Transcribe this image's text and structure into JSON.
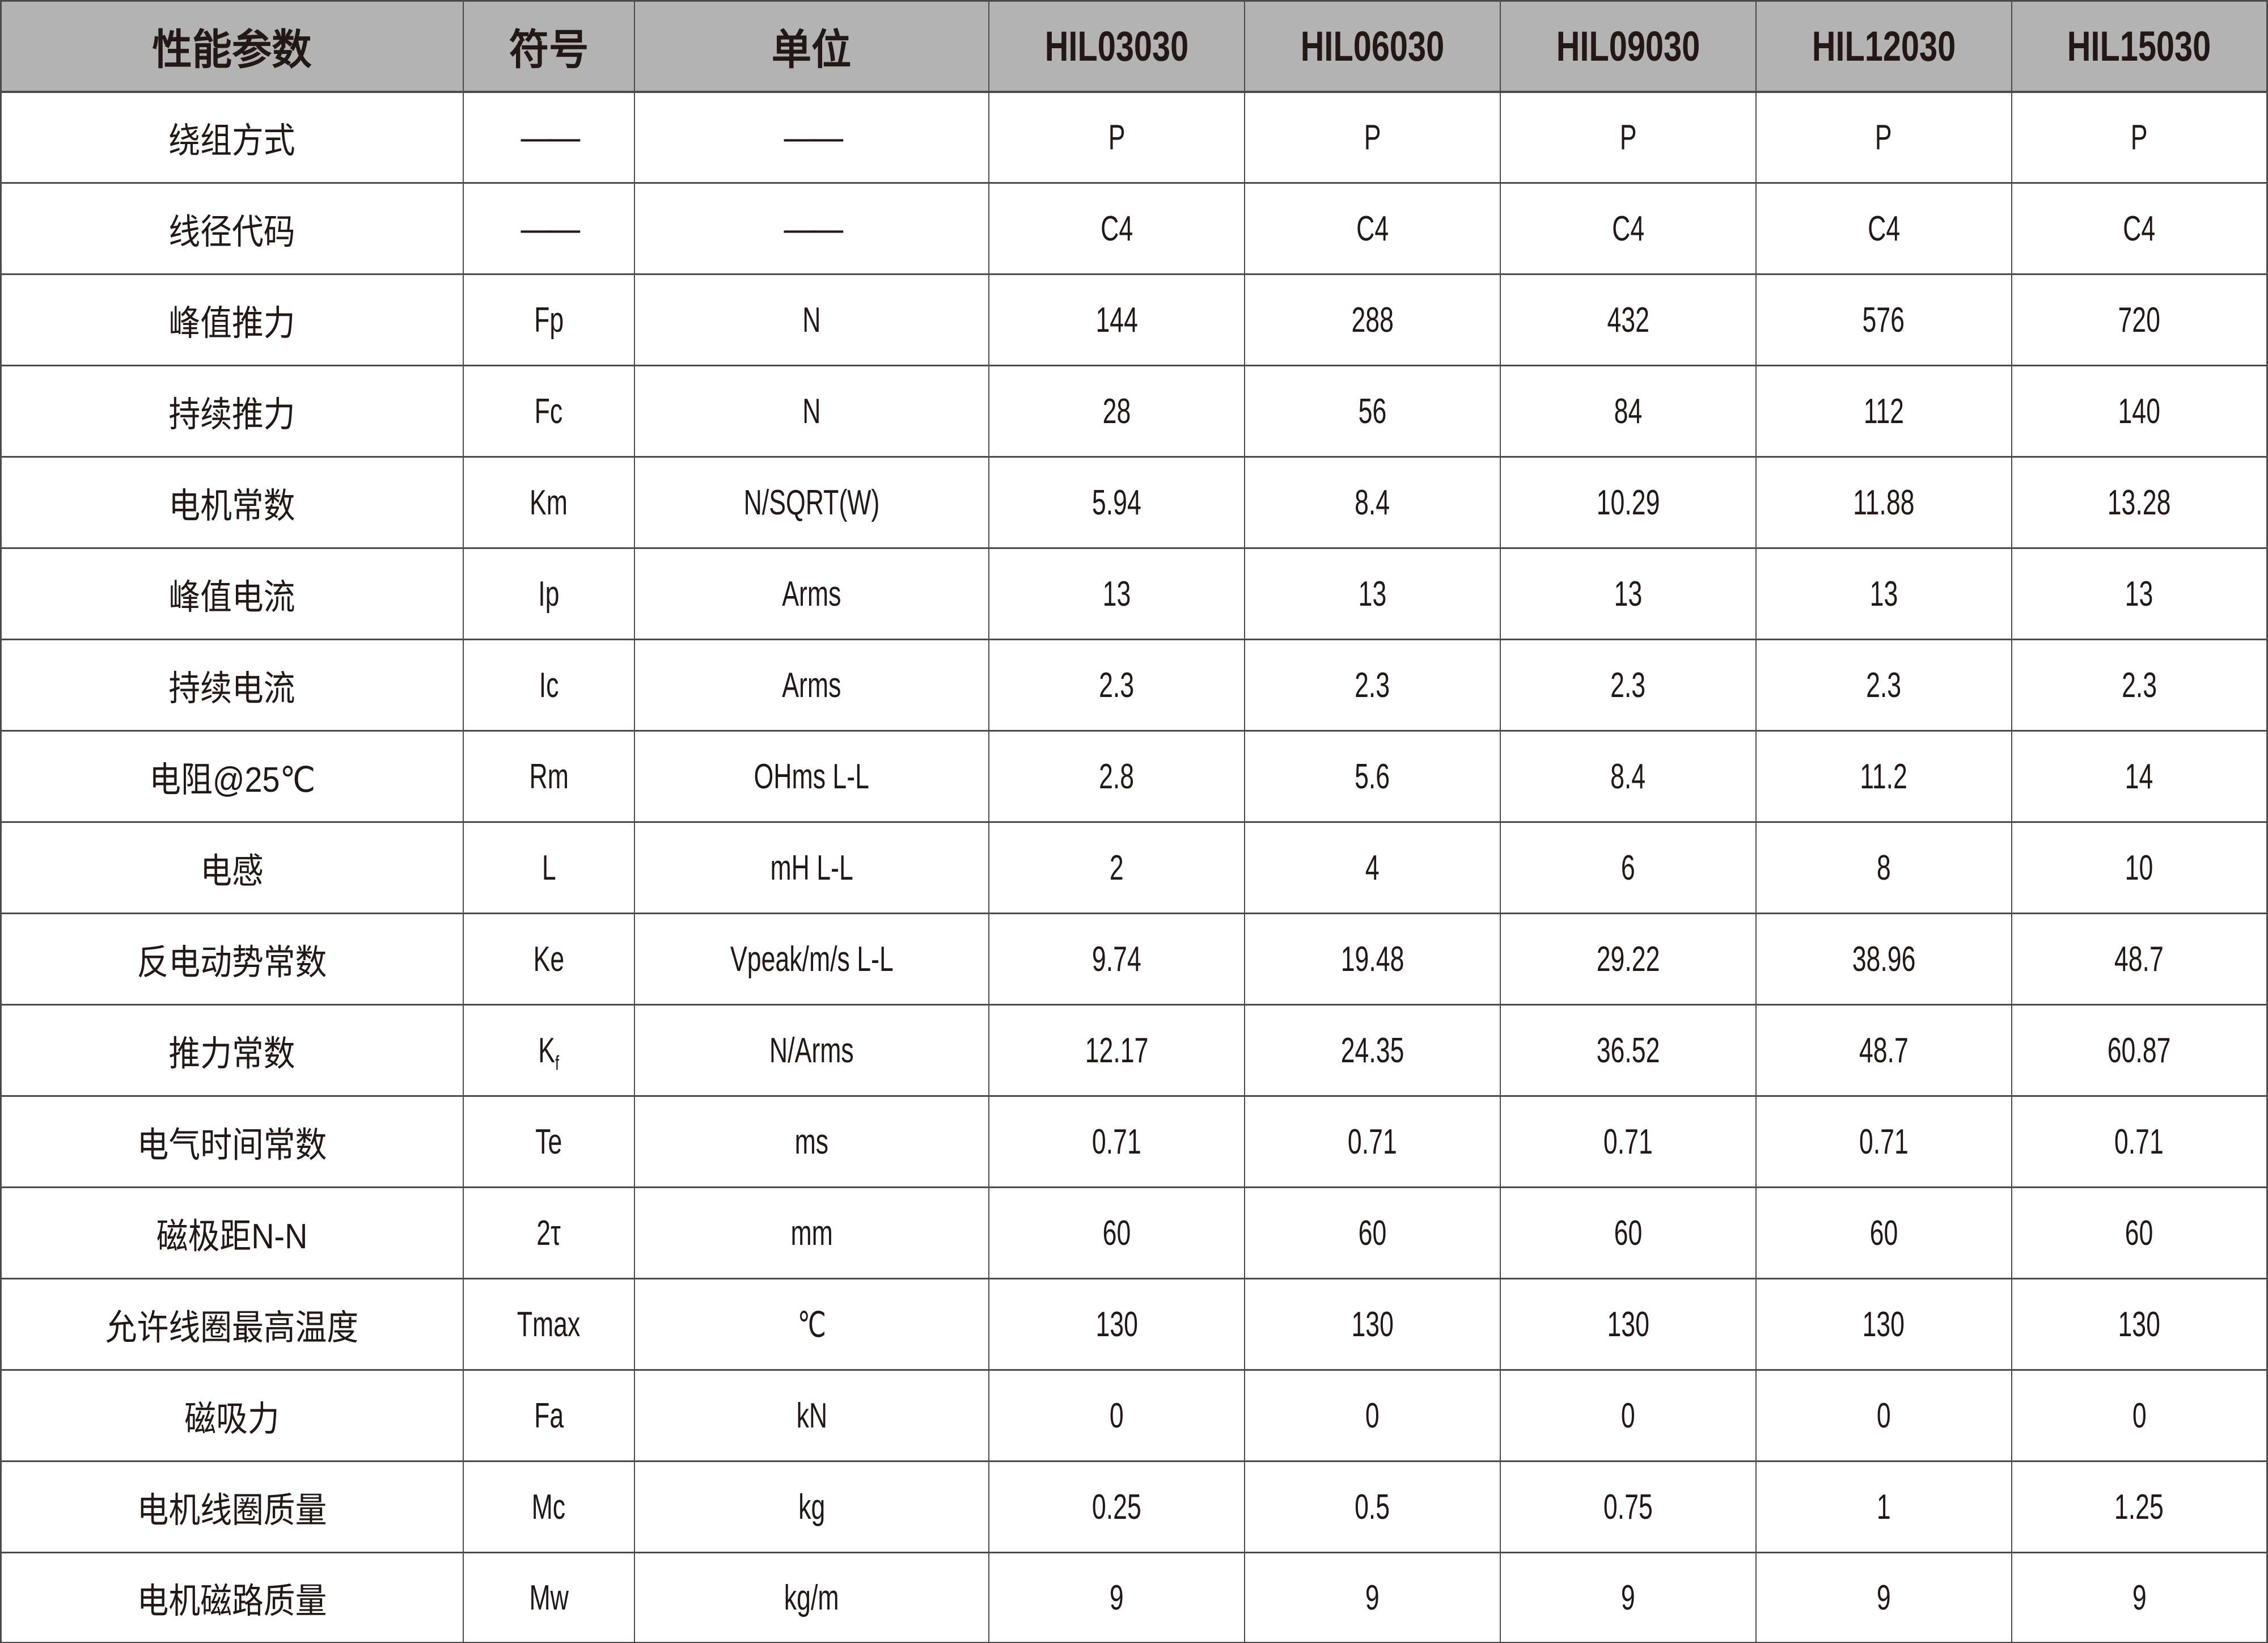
{
  "colors": {
    "header_bg": "#b3b3b3",
    "cell_bg": "#ffffff",
    "border": "#4e4a49",
    "text": "#231815"
  },
  "table": {
    "columns": [
      {
        "label": "性能参数",
        "kind": "cn"
      },
      {
        "label": "符号",
        "kind": "cn"
      },
      {
        "label": "单位",
        "kind": "cn"
      },
      {
        "label": "HIL03030",
        "kind": "lat"
      },
      {
        "label": "HIL06030",
        "kind": "lat"
      },
      {
        "label": "HIL09030",
        "kind": "lat"
      },
      {
        "label": "HIL12030",
        "kind": "lat"
      },
      {
        "label": "HIL15030",
        "kind": "lat"
      }
    ],
    "rows": [
      {
        "param": "绕组方式",
        "symbol": "——",
        "unit": "——",
        "values": [
          "P",
          "P",
          "P",
          "P",
          "P"
        ]
      },
      {
        "param": "线径代码",
        "symbol": "——",
        "unit": "——",
        "values": [
          "C4",
          "C4",
          "C4",
          "C4",
          "C4"
        ]
      },
      {
        "param": "峰值推力",
        "symbol": "Fp",
        "unit": "N",
        "values": [
          "144",
          "288",
          "432",
          "576",
          "720"
        ]
      },
      {
        "param": "持续推力",
        "symbol": "Fc",
        "unit": "N",
        "values": [
          "28",
          "56",
          "84",
          "112",
          "140"
        ]
      },
      {
        "param": "电机常数",
        "symbol": "Km",
        "unit": "N/SQRT(W)",
        "values": [
          "5.94",
          "8.4",
          "10.29",
          "11.88",
          "13.28"
        ]
      },
      {
        "param": "峰值电流",
        "symbol": "Ip",
        "unit": "Arms",
        "values": [
          "13",
          "13",
          "13",
          "13",
          "13"
        ]
      },
      {
        "param": "持续电流",
        "symbol": "Ic",
        "unit": "Arms",
        "values": [
          "2.3",
          "2.3",
          "2.3",
          "2.3",
          "2.3"
        ]
      },
      {
        "param": "电阻@25℃",
        "symbol": "Rm",
        "unit": "OHms L-L",
        "values": [
          "2.8",
          "5.6",
          "8.4",
          "11.2",
          "14"
        ]
      },
      {
        "param": "电感",
        "symbol": "L",
        "unit": "mH L-L",
        "values": [
          "2",
          "4",
          "6",
          "8",
          "10"
        ]
      },
      {
        "param": "反电动势常数",
        "symbol": "Ke",
        "unit": "Vpeak/m/s L-L",
        "values": [
          "9.74",
          "19.48",
          "29.22",
          "38.96",
          "48.7"
        ]
      },
      {
        "param": "推力常数",
        "symbol": "K_f",
        "unit": "N/Arms",
        "values": [
          "12.17",
          "24.35",
          "36.52",
          "48.7",
          "60.87"
        ]
      },
      {
        "param": "电气时间常数",
        "symbol": "Te",
        "unit": "ms",
        "values": [
          "0.71",
          "0.71",
          "0.71",
          "0.71",
          "0.71"
        ]
      },
      {
        "param": "磁极距N-N",
        "symbol": "2τ",
        "unit": "mm",
        "values": [
          "60",
          "60",
          "60",
          "60",
          "60"
        ]
      },
      {
        "param": "允许线圈最高温度",
        "symbol": "Tmax",
        "unit": "℃",
        "values": [
          "130",
          "130",
          "130",
          "130",
          "130"
        ]
      },
      {
        "param": "磁吸力",
        "symbol": "Fa",
        "unit": "kN",
        "values": [
          "0",
          "0",
          "0",
          "0",
          "0"
        ]
      },
      {
        "param": "电机线圈质量",
        "symbol": "Mc",
        "unit": "kg",
        "values": [
          "0.25",
          "0.5",
          "0.75",
          "1",
          "1.25"
        ]
      },
      {
        "param": "电机磁路质量",
        "symbol": "Mw",
        "unit": "kg/m",
        "values": [
          "9",
          "9",
          "9",
          "9",
          "9"
        ]
      }
    ]
  }
}
